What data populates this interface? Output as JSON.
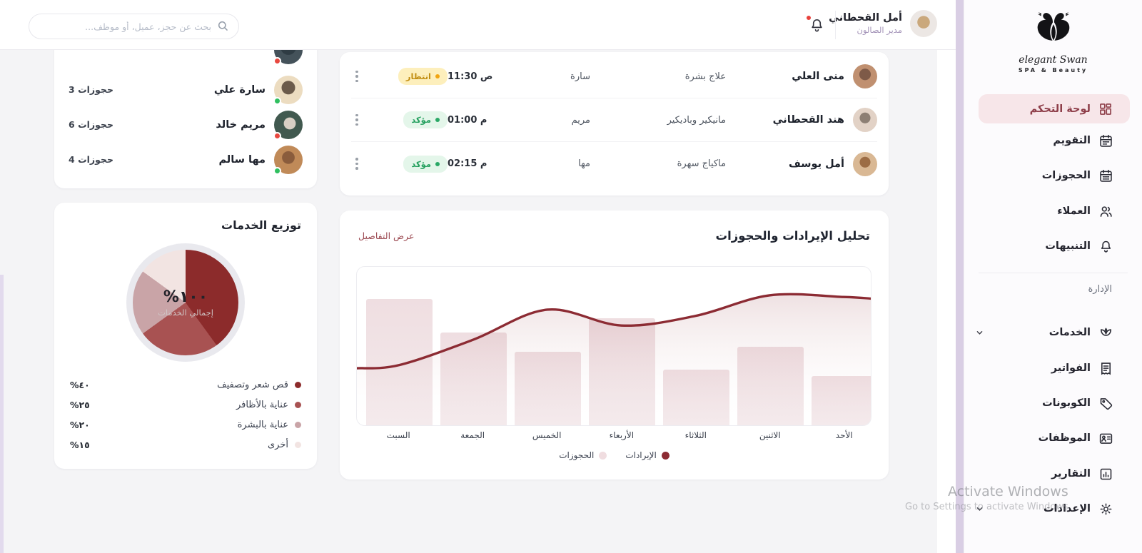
{
  "header": {
    "user_name": "أمل القحطاني",
    "user_role": "مدير الصالون",
    "search_placeholder": "بحث عن حجز، عميل، أو موظف..."
  },
  "sidebar": {
    "brand_name": "elegant Swan",
    "brand_tagline": "SPA & Beauty",
    "items": [
      {
        "label": "لوحة التحكم",
        "icon": "dashboard-icon",
        "active": true
      },
      {
        "label": "التقويم",
        "icon": "calendar-icon",
        "active": false
      },
      {
        "label": "الحجوزات",
        "icon": "bookings-calendar-icon",
        "active": false
      },
      {
        "label": "العملاء",
        "icon": "users-icon",
        "active": false
      },
      {
        "label": "التنبيهات",
        "icon": "bell-icon",
        "active": false
      }
    ],
    "section_label": "الإدارة",
    "admin_items": [
      {
        "label": "الخدمات",
        "icon": "spa-icon",
        "expandable": true
      },
      {
        "label": "الفواتير",
        "icon": "invoice-icon",
        "expandable": false
      },
      {
        "label": "الكوبونات",
        "icon": "coupon-icon",
        "expandable": false
      },
      {
        "label": "الموظفات",
        "icon": "staff-card-icon",
        "expandable": false
      },
      {
        "label": "التقارير",
        "icon": "reports-icon",
        "expandable": false
      },
      {
        "label": "الإعدادات",
        "icon": "settings-icon",
        "expandable": true
      }
    ]
  },
  "staff_panel": {
    "items": [
      {
        "name": "سارة علي",
        "bookings": "3 حجوزات",
        "status": "available"
      },
      {
        "name": "مريم خالد",
        "bookings": "6 حجوزات",
        "status": "busy"
      },
      {
        "name": "مها سالم",
        "bookings": "4 حجوزات",
        "status": "available"
      }
    ]
  },
  "bookings_table": {
    "rows": [
      {
        "client": "منى العلي",
        "service": "علاج بشرة",
        "staff": "سارة",
        "time": "11:30 ص",
        "status": "انتظار",
        "status_type": "pending"
      },
      {
        "client": "هند القحطاني",
        "service": "مانيكير وباديكير",
        "staff": "مريم",
        "time": "01:00 م",
        "status": "مؤكد",
        "status_type": "confirmed"
      },
      {
        "client": "أمل يوسف",
        "service": "ماكياج سهرة",
        "staff": "مها",
        "time": "02:15 م",
        "status": "مؤكد",
        "status_type": "confirmed"
      }
    ]
  },
  "services_panel": {
    "title": "توزيع الخدمات",
    "center_value": "١٠٠%",
    "center_label": "إجمالي الخدمات",
    "legend": [
      {
        "label": "قص شعر وتصفيف",
        "value": "٤٠%",
        "color": "#8c2b2b"
      },
      {
        "label": "عناية بالأظافر",
        "value": "٢٥%",
        "color": "#a85252"
      },
      {
        "label": "عناية بالبشرة",
        "value": "٢٠%",
        "color": "#c9a4a7"
      },
      {
        "label": "أخرى",
        "value": "١٥%",
        "color": "#f2e4e2"
      }
    ]
  },
  "analytics_panel": {
    "title": "تحليل الإيرادات والحجوزات",
    "details_link": "عرض التفاصيل",
    "legend": [
      {
        "label": "الإيرادات",
        "color": "#8c2b33"
      },
      {
        "label": "الحجوزات",
        "color": "#f0dde0"
      }
    ]
  },
  "chart_data": [
    {
      "type": "pie",
      "title": "توزيع الخدمات",
      "labels": [
        "قص شعر وتصفيف",
        "عناية بالأظافر",
        "عناية بالبشرة",
        "أخرى"
      ],
      "values": [
        40,
        25,
        20,
        15
      ],
      "unit": "%",
      "colors": [
        "#8c2b2b",
        "#a85252",
        "#c9a4a7",
        "#f2e4e2"
      ],
      "center_value": "١٠٠%",
      "center_label": "إجمالي الخدمات",
      "legend_position": "bottom"
    },
    {
      "type": "combo",
      "title": "تحليل الإيرادات والحجوزات",
      "categories": [
        "السبت",
        "الجمعة",
        "الخميس",
        "الأربعاء",
        "الثلاثاء",
        "الاثنين",
        "الأحد"
      ],
      "categories_order": "left-to-right",
      "axes_hidden": true,
      "ylim": [
        0,
        100
      ],
      "series": [
        {
          "name": "الحجوزات",
          "type": "bar",
          "color": "#f1e2e5",
          "values": [
            79,
            58,
            46,
            67,
            35,
            49,
            31
          ]
        },
        {
          "name": "الإيرادات",
          "type": "area-line",
          "color": "#8c2b33",
          "values": [
            38,
            54,
            73,
            63,
            69,
            82,
            81
          ]
        }
      ],
      "legend_position": "bottom"
    }
  ],
  "watermark": {
    "line1": "Activate Windows",
    "line2": "Go to Settings to activate Windows"
  }
}
